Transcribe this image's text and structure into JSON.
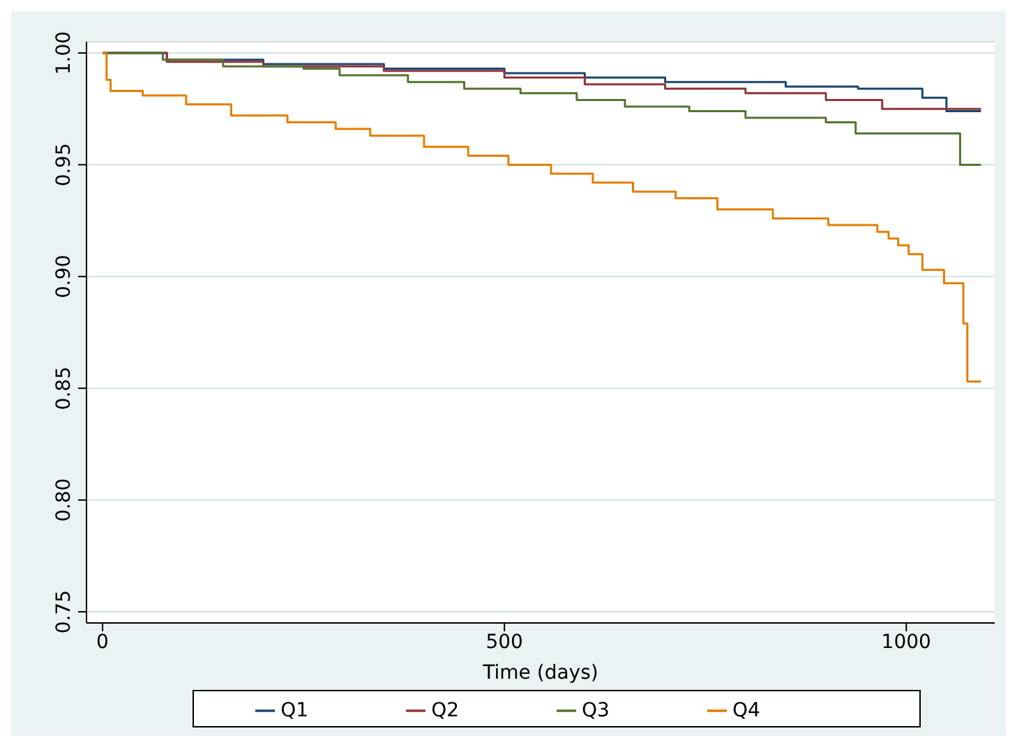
{
  "chart_data": {
    "type": "step",
    "xlabel": "Time (days)",
    "xlim": [
      -20,
      1110
    ],
    "xticks": [
      0,
      500,
      1000
    ],
    "ylim": [
      0.745,
      1.005
    ],
    "yticks": [
      {
        "value": 0.75,
        "label": "0.75"
      },
      {
        "value": 0.8,
        "label": "0.80"
      },
      {
        "value": 0.85,
        "label": "0.85"
      },
      {
        "value": 0.9,
        "label": "0.90"
      },
      {
        "value": 0.95,
        "label": "0.95"
      },
      {
        "value": 1,
        "label": "1.00"
      }
    ],
    "grid": "y",
    "legend": "bottom",
    "series": [
      {
        "name": "Q1",
        "color": "#1a476f",
        "x": [
          0,
          80,
          200,
          350,
          500,
          600,
          700,
          850,
          940,
          1020,
          1050,
          1093
        ],
        "values": [
          1,
          0.997,
          0.995,
          0.993,
          0.991,
          0.989,
          0.987,
          0.985,
          0.984,
          0.98,
          0.974,
          0.974
        ]
      },
      {
        "name": "Q2",
        "color": "#90353b",
        "x": [
          0,
          80,
          200,
          350,
          500,
          600,
          700,
          800,
          900,
          970,
          1093
        ],
        "values": [
          1,
          0.996,
          0.994,
          0.992,
          0.989,
          0.986,
          0.984,
          0.982,
          0.979,
          0.975,
          0.975
        ]
      },
      {
        "name": "Q3",
        "color": "#55752f",
        "x": [
          0,
          75,
          150,
          250,
          295,
          380,
          450,
          520,
          590,
          650,
          730,
          800,
          900,
          937,
          1067,
          1093
        ],
        "values": [
          1,
          0.997,
          0.994,
          0.993,
          0.99,
          0.987,
          0.984,
          0.982,
          0.979,
          0.976,
          0.974,
          0.971,
          0.969,
          0.964,
          0.95,
          0.95
        ]
      },
      {
        "name": "Q4",
        "color": "#e37e00",
        "x": [
          0,
          5,
          10,
          50,
          104,
          160,
          230,
          290,
          333,
          400,
          455,
          505,
          558,
          610,
          660,
          713,
          765,
          834,
          903,
          964,
          978,
          990,
          1003,
          1020,
          1047,
          1071,
          1076,
          1093
        ],
        "values": [
          1,
          0.988,
          0.983,
          0.981,
          0.977,
          0.972,
          0.969,
          0.966,
          0.963,
          0.958,
          0.954,
          0.95,
          0.946,
          0.942,
          0.938,
          0.935,
          0.93,
          0.926,
          0.923,
          0.92,
          0.917,
          0.914,
          0.91,
          0.903,
          0.897,
          0.879,
          0.853,
          0.853
        ]
      }
    ]
  }
}
